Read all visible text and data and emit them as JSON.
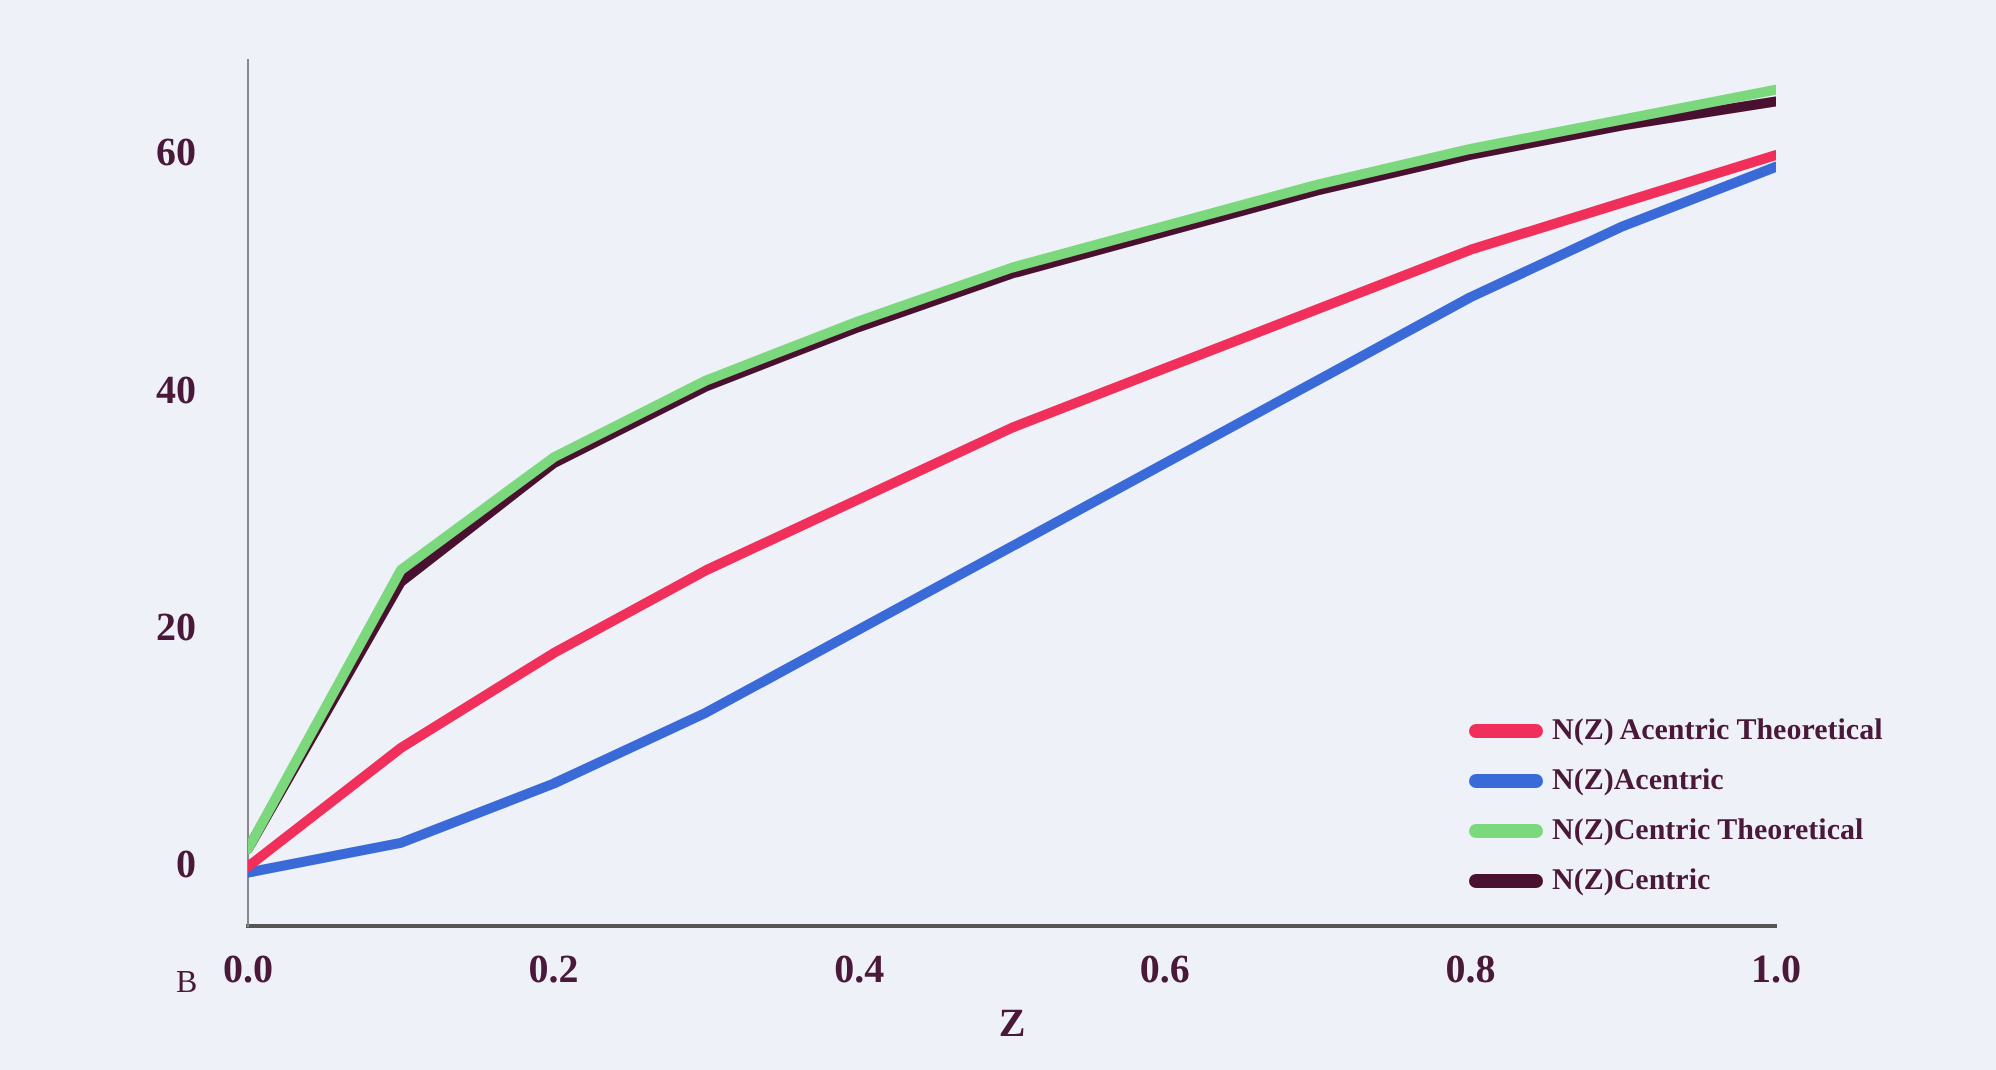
{
  "chart_data": {
    "type": "line",
    "xlabel": "Z",
    "annotations": [
      "B"
    ],
    "x": [
      0,
      0.1,
      0.2,
      0.3,
      0.4,
      0.5,
      0.6,
      0.7,
      0.8,
      0.9,
      1.0
    ],
    "series": [
      {
        "name": "N(Z) Acentric Theoretical",
        "color": "#f0305a",
        "values": [
          0,
          10,
          18,
          25,
          31,
          37,
          42,
          47,
          52,
          56,
          60
        ]
      },
      {
        "name": "N(Z)Acentric",
        "color": "#3a6ad8",
        "values": [
          -0.5,
          2,
          7,
          13,
          20,
          27,
          34,
          41,
          48,
          54,
          59
        ]
      },
      {
        "name": "N(Z)Centric Theoretical",
        "color": "#7cd87c",
        "values": [
          1.5,
          25,
          34.5,
          41,
          46,
          50.5,
          54,
          57.5,
          60.5,
          63,
          65.5
        ]
      },
      {
        "name": "N(Z)Centric",
        "color": "#4a1030",
        "values": [
          1.5,
          24,
          34,
          40.5,
          45.5,
          50,
          53.5,
          57,
          60,
          62.5,
          64.5
        ]
      }
    ],
    "xlim": [
      0,
      1
    ],
    "xticks": [
      {
        "value": 0,
        "label": "0.0"
      },
      0.2,
      0.4,
      0.6,
      0.8,
      {
        "value": 1,
        "label": "1.0"
      }
    ],
    "ylim": [
      -5,
      68
    ],
    "yticks": [
      0,
      20,
      40,
      60
    ],
    "grid": false,
    "legend": "bottom right",
    "marker": "none",
    "line_style": "solid"
  }
}
